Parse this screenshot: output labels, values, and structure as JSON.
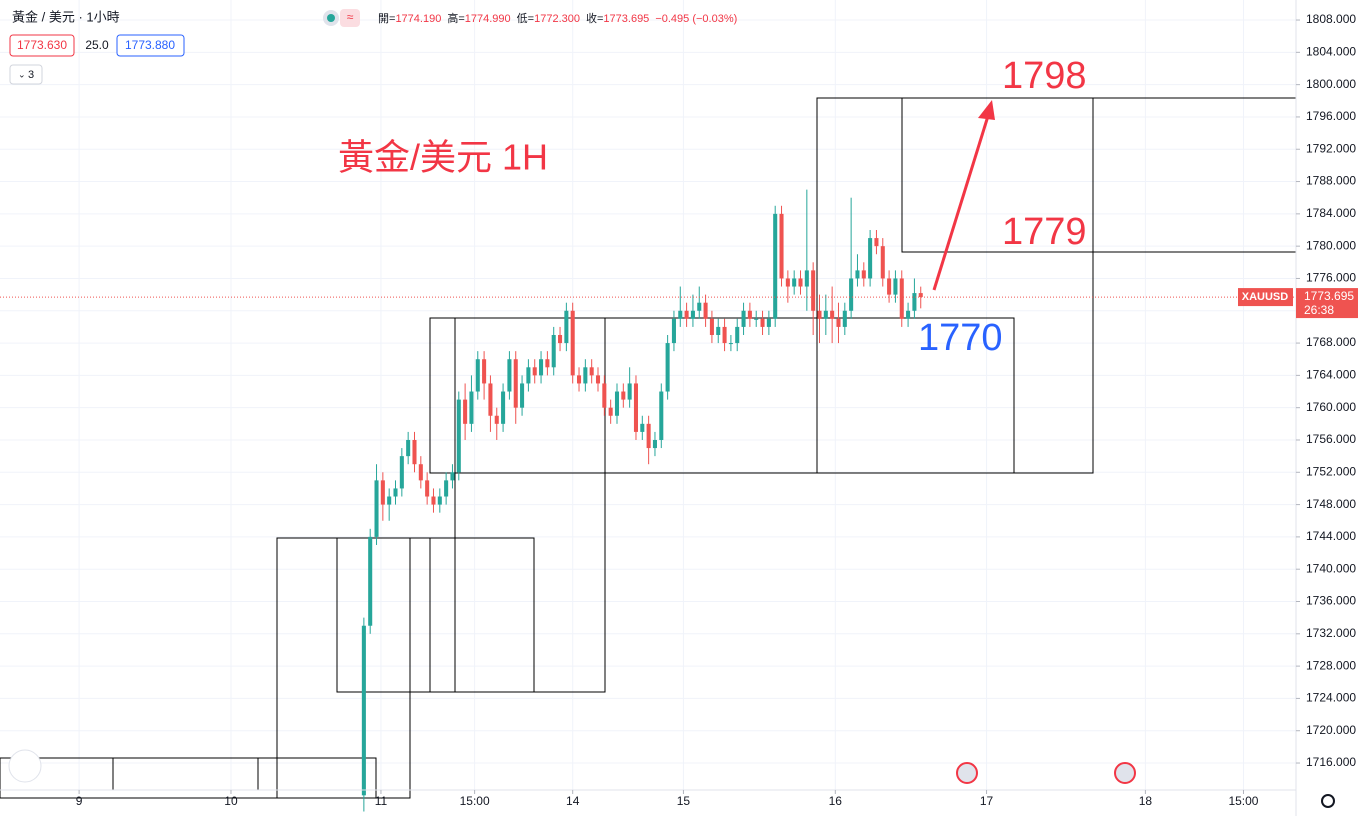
{
  "chart_data": {
    "type": "candlestick",
    "symbol_title": "黃金 / 美元 · 1小時",
    "ohlc_legend": {
      "open_label": "開=",
      "open": "1774.190",
      "high_label": "高=",
      "high": "1774.990",
      "low_label": "低=",
      "low": "1772.300",
      "close_label": "收=",
      "close": "1773.695",
      "change": "−0.495 (−0.03%)"
    },
    "bid": "1773.630",
    "spread": "25.0",
    "ask": "1773.880",
    "indicator_count": "3",
    "annotations": {
      "title": "黃金/美元 1H",
      "target_high": "1798",
      "target_mid": "1779",
      "support": "1770"
    },
    "last_price": {
      "symbol": "XAUUSD",
      "value": 1773.695,
      "label": "1773.695",
      "countdown": "26:38"
    },
    "up_color": "#26a69a",
    "down_color": "#ef5350",
    "x": [
      45,
      46,
      47,
      48,
      49,
      50,
      51,
      52,
      53,
      54,
      55,
      56,
      57,
      58,
      59,
      60,
      61,
      62,
      63,
      64,
      65,
      66,
      67,
      68,
      69,
      70,
      71,
      72,
      73,
      74,
      75,
      76,
      77,
      78,
      79,
      80,
      81,
      82,
      83,
      84,
      85,
      86,
      87,
      88,
      89,
      90,
      91,
      92,
      93,
      94,
      95,
      96,
      97,
      98,
      99,
      100,
      101,
      102,
      103,
      104,
      105,
      106,
      107,
      108,
      109,
      110,
      111,
      112,
      113,
      114,
      115,
      116,
      117,
      118,
      119,
      120,
      121,
      122,
      123,
      124,
      125,
      126,
      127,
      128,
      129,
      130,
      131,
      132,
      133
    ],
    "open": [
      1712,
      1733,
      1744,
      1751,
      1748,
      1749,
      1750,
      1754,
      1756,
      1753,
      1751,
      1749,
      1748,
      1749,
      1751,
      1752,
      1761,
      1758,
      1762,
      1766,
      1763,
      1759,
      1758,
      1762,
      1766,
      1760,
      1763,
      1765,
      1764,
      1766,
      1765,
      1769,
      1768,
      1772,
      1764,
      1763,
      1765,
      1764,
      1763,
      1760,
      1759,
      1762,
      1761,
      1763,
      1757,
      1758,
      1755,
      1756,
      1762,
      1768,
      1771,
      1772,
      1771,
      1772,
      1773,
      1771,
      1769,
      1770,
      1768,
      1768,
      1770,
      1772,
      1771,
      1771,
      1770,
      1771,
      1784,
      1776,
      1775,
      1776,
      1775,
      1777,
      1772,
      1771,
      1772,
      1771,
      1770,
      1772,
      1776,
      1777,
      1776,
      1781,
      1780,
      1776,
      1774,
      1776,
      1771,
      1772,
      1774.19
    ],
    "high": [
      1734,
      1745,
      1753,
      1752,
      1750,
      1751,
      1755,
      1757,
      1757,
      1754,
      1752,
      1750,
      1750,
      1752,
      1753,
      1762,
      1763,
      1764,
      1767,
      1767,
      1764,
      1760,
      1763,
      1767,
      1767,
      1764,
      1766,
      1766,
      1767,
      1767,
      1770,
      1770,
      1773,
      1773,
      1765,
      1766,
      1766,
      1765,
      1764,
      1761,
      1763,
      1763,
      1765,
      1764,
      1759,
      1759,
      1757,
      1763,
      1769,
      1772,
      1775,
      1773,
      1774,
      1775,
      1774,
      1772,
      1771,
      1771,
      1769,
      1771,
      1773,
      1773,
      1772,
      1772,
      1772,
      1785,
      1785,
      1777,
      1777,
      1777,
      1787,
      1778,
      1774,
      1774,
      1775,
      1773,
      1773,
      1786,
      1779,
      1778,
      1782,
      1782,
      1781,
      1777,
      1777,
      1777,
      1773,
      1776,
      1774.99
    ],
    "low": [
      1710,
      1732,
      1743,
      1746,
      1746,
      1748,
      1749,
      1753,
      1752,
      1750,
      1748,
      1747,
      1747,
      1748,
      1750,
      1751,
      1756,
      1757,
      1761,
      1761,
      1757,
      1756,
      1757,
      1761,
      1758,
      1759,
      1762,
      1763,
      1763,
      1764,
      1764,
      1767,
      1767,
      1763,
      1762,
      1762,
      1763,
      1762,
      1759,
      1758,
      1758,
      1760,
      1760,
      1756,
      1756,
      1753,
      1754,
      1755,
      1761,
      1767,
      1770,
      1770,
      1770,
      1771,
      1770,
      1768,
      1768,
      1767,
      1767,
      1767,
      1769,
      1770,
      1770,
      1769,
      1769,
      1770,
      1775,
      1773,
      1774,
      1774,
      1772,
      1769,
      1768,
      1769,
      1768,
      1768,
      1769,
      1771,
      1775,
      1775,
      1775,
      1779,
      1775,
      1773,
      1773,
      1770,
      1770,
      1771,
      1772.3
    ],
    "close": [
      1733,
      1744,
      1751,
      1748,
      1749,
      1750,
      1754,
      1756,
      1753,
      1751,
      1749,
      1748,
      1749,
      1751,
      1752,
      1761,
      1758,
      1762,
      1766,
      1763,
      1759,
      1758,
      1762,
      1766,
      1760,
      1763,
      1765,
      1764,
      1766,
      1765,
      1769,
      1768,
      1772,
      1764,
      1763,
      1765,
      1764,
      1763,
      1760,
      1759,
      1762,
      1761,
      1763,
      1757,
      1758,
      1755,
      1756,
      1762,
      1768,
      1771,
      1772,
      1771,
      1772,
      1773,
      1771,
      1769,
      1770,
      1768,
      1768,
      1770,
      1772,
      1771,
      1771,
      1770,
      1771,
      1784,
      1776,
      1775,
      1776,
      1775,
      1777,
      1772,
      1771,
      1772,
      1771,
      1770,
      1772,
      1776,
      1777,
      1776,
      1781,
      1780,
      1776,
      1774,
      1776,
      1771,
      1772,
      1774.19,
      1773.695
    ],
    "xlim": [
      -12.5,
      192.3
    ],
    "xticks": [
      {
        "value": 0,
        "label": "9"
      },
      {
        "value": 24,
        "label": "10"
      },
      {
        "value": 47.7,
        "label": "11"
      },
      {
        "value": 62.5,
        "label": "15:00"
      },
      {
        "value": 78,
        "label": "14"
      },
      {
        "value": 95.5,
        "label": "15"
      },
      {
        "value": 119.5,
        "label": "16"
      },
      {
        "value": 143.4,
        "label": "17"
      },
      {
        "value": 168.5,
        "label": "18"
      },
      {
        "value": 184,
        "label": "15:00"
      }
    ],
    "ylim": [
      1712.66,
      1810.48
    ],
    "yticks": [
      {
        "value": 1716,
        "label": "1716.000"
      },
      {
        "value": 1720,
        "label": "1720.000"
      },
      {
        "value": 1724,
        "label": "1724.000"
      },
      {
        "value": 1728,
        "label": "1728.000"
      },
      {
        "value": 1732,
        "label": "1732.000"
      },
      {
        "value": 1736,
        "label": "1736.000"
      },
      {
        "value": 1740,
        "label": "1740.000"
      },
      {
        "value": 1744,
        "label": "1744.000"
      },
      {
        "value": 1748,
        "label": "1748.000"
      },
      {
        "value": 1752,
        "label": "1752.000"
      },
      {
        "value": 1756,
        "label": "1756.000"
      },
      {
        "value": 1760,
        "label": "1760.000"
      },
      {
        "value": 1764,
        "label": "1764.000"
      },
      {
        "value": 1768,
        "label": "1768.000"
      },
      {
        "value": 1772,
        "label": "1772.000"
      },
      {
        "value": 1776,
        "label": "1776.000"
      },
      {
        "value": 1780,
        "label": "1780.000"
      },
      {
        "value": 1784,
        "label": "1784.000"
      },
      {
        "value": 1788,
        "label": "1788.000"
      },
      {
        "value": 1792,
        "label": "1792.000"
      },
      {
        "value": 1796,
        "label": "1796.000"
      },
      {
        "value": 1800,
        "label": "1800.000"
      },
      {
        "value": 1804,
        "label": "1804.000"
      },
      {
        "value": 1808,
        "label": "1808.000"
      }
    ],
    "grid": true
  }
}
